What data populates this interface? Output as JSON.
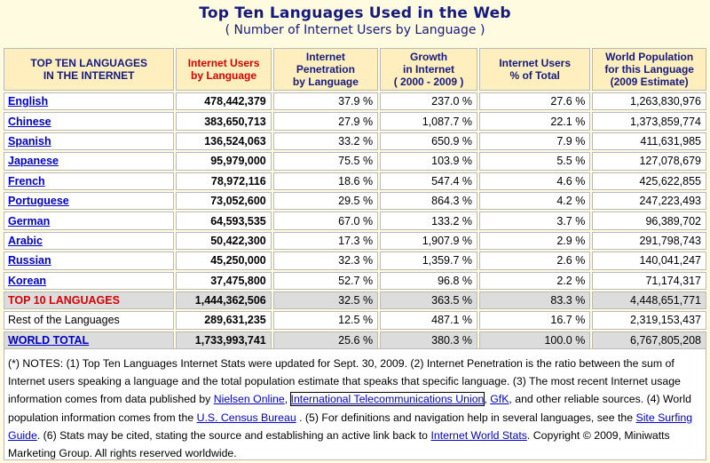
{
  "title": "Top Ten Languages Used in the Web",
  "subtitle": "( Number of Internet Users by Language )",
  "headers": [
    "TOP TEN LANGUAGES IN THE INTERNET",
    "Internet Users by Language",
    "Internet Penetration by Language",
    "Growth in Internet ( 2000 - 2009 )",
    "Internet Users % of Total",
    "World Population for this Language (2009 Estimate)"
  ],
  "header_lines": [
    [
      "TOP TEN LANGUAGES",
      "IN THE INTERNET"
    ],
    [
      "Internet Users",
      "by Language"
    ],
    [
      "Internet",
      "Penetration",
      "by Language"
    ],
    [
      "Growth",
      "in Internet",
      "( 2000 - 2009 )"
    ],
    [
      "Internet Users",
      "% of Total"
    ],
    [
      "World Population",
      "for this Language",
      "(2009 Estimate)"
    ]
  ],
  "rows": [
    [
      "English",
      "478,442,379",
      "37.9 %",
      "237.0 %",
      "27.6 %",
      "1,263,830,976"
    ],
    [
      "Chinese",
      "383,650,713",
      "27.9 %",
      "1,087.7 %",
      "22.1 %",
      "1,373,859,774"
    ],
    [
      "Spanish",
      "136,524,063",
      "33.2 %",
      "650.9 %",
      "7.9 %",
      "411,631,985"
    ],
    [
      "Japanese",
      "95,979,000",
      "75.5 %",
      "103.9 %",
      "5.5 %",
      "127,078,679"
    ],
    [
      "French",
      "78,972,116",
      "18.6 %",
      "547.4 %",
      "4.6 %",
      "425,622,855"
    ],
    [
      "Portuguese",
      "73,052,600",
      "29.5 %",
      "864.3 %",
      "4.2 %",
      "247,223,493"
    ],
    [
      "German",
      "64,593,535",
      "67.0 %",
      "133.2 %",
      "3.7 %",
      "96,389,702"
    ],
    [
      "Arabic",
      "50,422,300",
      "17.3 %",
      "1,907.9 %",
      "2.9 %",
      "291,798,743"
    ],
    [
      "Russian",
      "45,250,000",
      "32.3 %",
      "1,359.7 %",
      "2.6 %",
      "140,041,247"
    ],
    [
      "Korean",
      "37,475,800",
      "52.7 %",
      "96.8 %",
      "2.2 %",
      "71,174,317"
    ]
  ],
  "top10": [
    "TOP 10 LANGUAGES",
    "1,444,362,506",
    "32.5 %",
    "363.5 %",
    "83.3 %",
    "4,448,651,771"
  ],
  "rest": [
    "Rest of the Languages",
    "289,631,235",
    "12.5 %",
    "487.1 %",
    "16.7 %",
    "2,319,153,437"
  ],
  "world": [
    "WORLD TOTAL",
    "1,733,993,741",
    "25.6 %",
    "380.3 %",
    "100.0 %",
    "6,767,805,208"
  ],
  "notes": {
    "t1": "(*) NOTES: (1) Top Ten Languages Internet Stats were updated for Sept. 30, 2009. (2) Internet Penetration is the ratio between the sum of Internet users speaking a language and the total population estimate that speaks that specific language. (3) The most recent Internet usage information comes from data published by ",
    "link1": "Nielsen Online",
    "t2": ", ",
    "link2": "International Telecommunications Union",
    "t3": ", ",
    "link3": "GfK",
    "t4": ", and other reliable sources. (4) World population information comes from the ",
    "link4": "U.S. Census Bureau",
    "t5": " . (5) For definitions and navigation help in several languages, see the ",
    "link5": "Site Surfing Guide",
    "t6": ". (6) Stats may be cited, stating the source and establishing an active link back to ",
    "link6": "Internet World Stats",
    "t7": ". Copyright © 2009, Miniwatts Marketing Group. All rights reserved worldwide."
  }
}
